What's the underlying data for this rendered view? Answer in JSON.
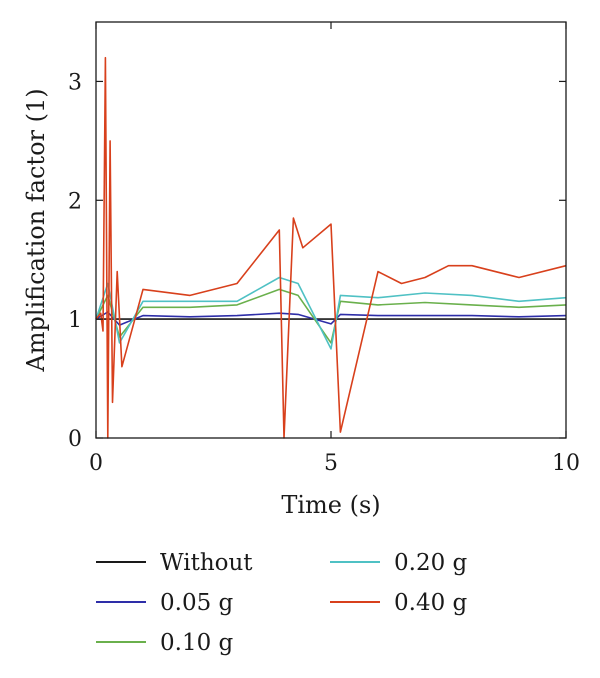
{
  "chart_data": {
    "type": "line",
    "title": "",
    "xlabel": "Time (s)",
    "ylabel": "Amplification factor (1)",
    "xlim": [
      0,
      10
    ],
    "ylim": [
      0,
      3.5
    ],
    "x_ticks": [
      0,
      5,
      10
    ],
    "y_ticks": [
      0,
      1,
      2,
      3
    ],
    "x_tick_labels": [
      "0",
      "5",
      "10"
    ],
    "y_tick_labels": [
      "0",
      "1",
      "2",
      "3"
    ],
    "grid": false,
    "legend_position": "bottom",
    "series": [
      {
        "name": "Without",
        "color": "#1a1a1a",
        "x": [
          0,
          0.5,
          1,
          2,
          3,
          4,
          5,
          6,
          7,
          8,
          9,
          10
        ],
        "y": [
          1,
          1,
          1,
          1,
          1,
          1,
          1,
          1,
          1,
          1,
          1,
          1
        ]
      },
      {
        "name": "0.05 g",
        "color": "#2e2ea8",
        "x": [
          0,
          0.25,
          0.5,
          1,
          2,
          3,
          3.9,
          4.3,
          5,
          5.2,
          6,
          7,
          8,
          9,
          10
        ],
        "y": [
          1,
          1.06,
          0.95,
          1.03,
          1.02,
          1.03,
          1.05,
          1.04,
          0.96,
          1.04,
          1.03,
          1.03,
          1.03,
          1.02,
          1.03
        ]
      },
      {
        "name": "0.10 g",
        "color": "#6ab04c",
        "x": [
          0,
          0.25,
          0.5,
          1,
          2,
          3,
          3.9,
          4.3,
          5,
          5.2,
          6,
          7,
          8,
          9,
          10
        ],
        "y": [
          1,
          1.2,
          0.85,
          1.1,
          1.1,
          1.12,
          1.25,
          1.2,
          0.8,
          1.15,
          1.12,
          1.14,
          1.12,
          1.1,
          1.12
        ]
      },
      {
        "name": "0.20 g",
        "color": "#4fc1c4",
        "x": [
          0,
          0.25,
          0.5,
          1,
          2,
          3,
          3.9,
          4.3,
          5,
          5.2,
          6,
          7,
          8,
          9,
          10
        ],
        "y": [
          1,
          1.3,
          0.8,
          1.15,
          1.15,
          1.15,
          1.35,
          1.3,
          0.75,
          1.2,
          1.18,
          1.22,
          1.2,
          1.15,
          1.18
        ]
      },
      {
        "name": "0.40 g",
        "color": "#d8401c",
        "x": [
          0,
          0.1,
          0.15,
          0.2,
          0.25,
          0.3,
          0.35,
          0.45,
          0.55,
          1,
          2,
          3,
          3.9,
          4,
          4.2,
          4.4,
          5,
          5.2,
          6,
          6.5,
          7,
          7.5,
          8,
          9,
          10
        ],
        "y": [
          1,
          1.05,
          0.9,
          3.2,
          0,
          2.5,
          0.3,
          1.4,
          0.6,
          1.25,
          1.2,
          1.3,
          1.75,
          0,
          1.85,
          1.6,
          1.8,
          0.05,
          1.4,
          1.3,
          1.35,
          1.45,
          1.45,
          1.35,
          1.45
        ]
      }
    ]
  },
  "legend": {
    "items": [
      {
        "label": "Without",
        "color": "#1a1a1a"
      },
      {
        "label": "0.05 g",
        "color": "#2e2ea8"
      },
      {
        "label": "0.10 g",
        "color": "#6ab04c"
      },
      {
        "label": "0.20 g",
        "color": "#4fc1c4"
      },
      {
        "label": "0.40 g",
        "color": "#d8401c"
      }
    ]
  }
}
